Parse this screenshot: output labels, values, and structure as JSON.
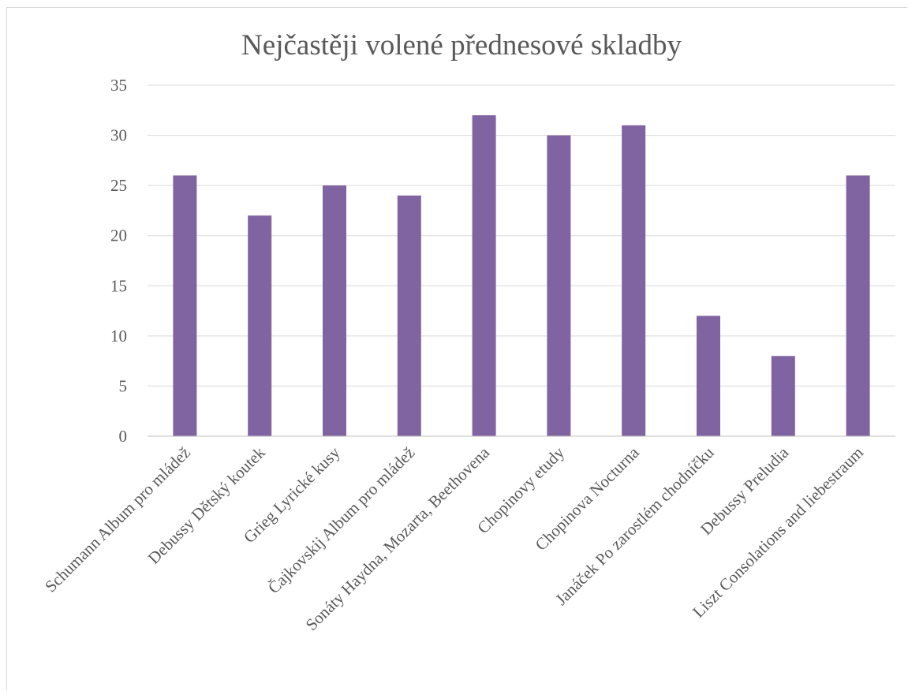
{
  "chart_data": {
    "type": "bar",
    "title": "Nejčastěji volené přednesové skladby",
    "xlabel": "",
    "ylabel": "",
    "categories": [
      "Schumann Album pro mládež",
      "Debussy Dětský koutek",
      "Grieg Lyrické kusy",
      "Čajkovskij Album pro mládež",
      "Sonáty Haydna, Mozarta, Beethovena",
      "Chopinovy etudy",
      "Chopinova Nocturna",
      "Janáček Po zarostlém chodníčku",
      "Debussy Preludia",
      "Liszt Consolations and liebestraum"
    ],
    "values": [
      26,
      22,
      25,
      24,
      32,
      30,
      31,
      12,
      8,
      26
    ],
    "ylim": [
      0,
      35
    ],
    "yticks": [
      "0",
      "5",
      "10",
      "15",
      "20",
      "25",
      "30",
      "35"
    ],
    "grid": true,
    "legend": "none",
    "bar_color": "#8064a2"
  }
}
